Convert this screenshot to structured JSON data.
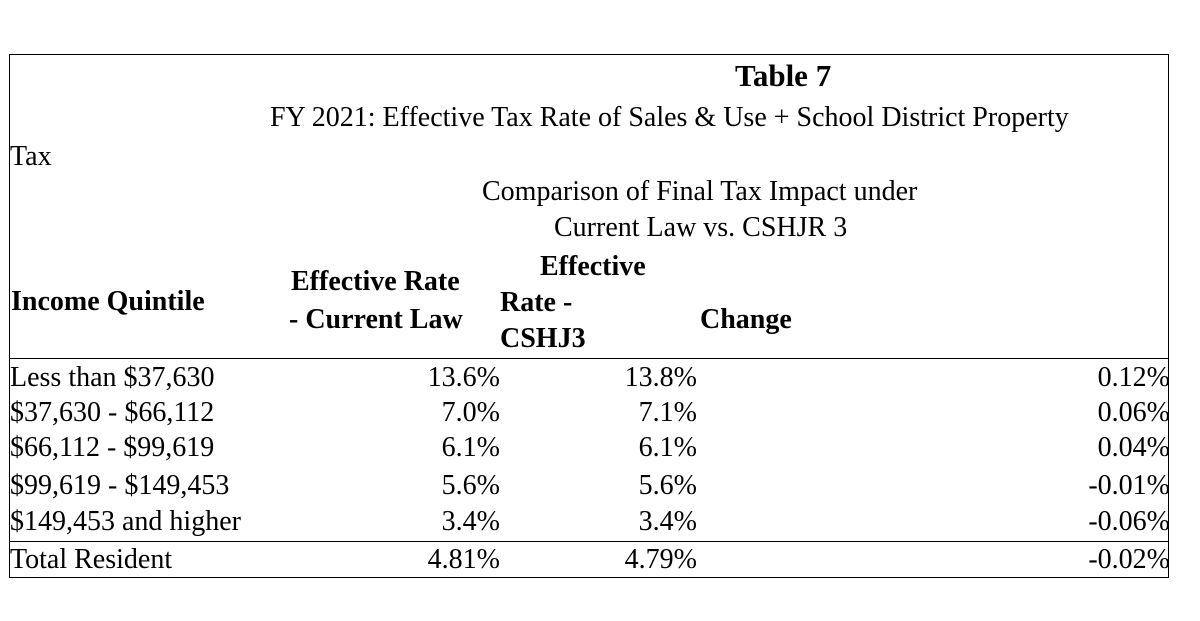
{
  "table": {
    "title": "Table 7",
    "subtitle_line1": "FY 2021: Effective Tax Rate of Sales & Use + School District Property",
    "subtitle_line2": "Tax",
    "comparison_line1": "Comparison of Final Tax Impact under",
    "comparison_line2": "Current Law vs. CSHJR 3",
    "headers": {
      "quintile": "Income Quintile",
      "current_line1": "Effective Rate",
      "current_line2": "-  Current Law",
      "cshj3_line1": "Effective",
      "cshj3_line2": "Rate -",
      "cshj3_line3": "CSHJ3",
      "change": "Change"
    },
    "rows": [
      {
        "quintile": "Less than $37,630",
        "current": "13.6%",
        "cshj3": "13.8%",
        "change": "0.12%"
      },
      {
        "quintile": "$37,630 - $66,112",
        "current": "7.0%",
        "cshj3": "7.1%",
        "change": "0.06%"
      },
      {
        "quintile": "$66,112 - $99,619",
        "current": "6.1%",
        "cshj3": "6.1%",
        "change": "0.04%"
      },
      {
        "quintile": "$99,619 - $149,453",
        "current": "5.6%",
        "cshj3": "5.6%",
        "change": "-0.01%"
      },
      {
        "quintile": "$149,453 and higher",
        "current": "3.4%",
        "cshj3": "3.4%",
        "change": "-0.06%"
      }
    ],
    "total": {
      "quintile": "Total Resident",
      "current": "4.81%",
      "cshj3": "4.79%",
      "change": "-0.02%"
    }
  }
}
